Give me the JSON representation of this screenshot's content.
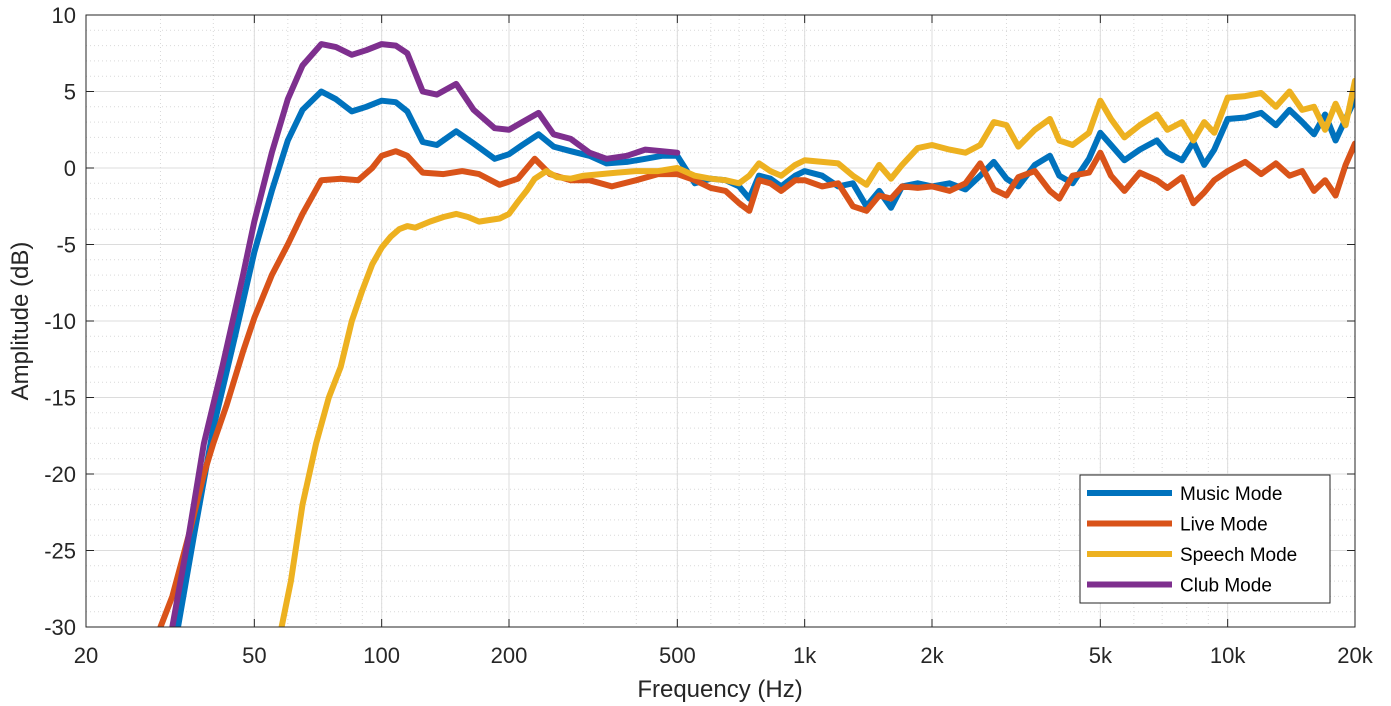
{
  "chart_data": {
    "type": "line",
    "title": "",
    "xlabel": "Frequency (Hz)",
    "ylabel": "Amplitude (dB)",
    "xscale": "log",
    "xlim": [
      20,
      20000
    ],
    "ylim": [
      -30,
      10
    ],
    "grid": true,
    "minor_grid": true,
    "legend_position": "bottom-right",
    "x_ticks": [
      {
        "value": 20,
        "label": "20"
      },
      {
        "value": 50,
        "label": "50"
      },
      {
        "value": 100,
        "label": "100"
      },
      {
        "value": 200,
        "label": "200"
      },
      {
        "value": 500,
        "label": "500"
      },
      {
        "value": 1000,
        "label": "1k"
      },
      {
        "value": 2000,
        "label": "2k"
      },
      {
        "value": 5000,
        "label": "5k"
      },
      {
        "value": 10000,
        "label": "10k"
      },
      {
        "value": 20000,
        "label": "20k"
      }
    ],
    "y_ticks": [
      {
        "value": 10,
        "label": "10"
      },
      {
        "value": 5,
        "label": "5"
      },
      {
        "value": 0,
        "label": "0"
      },
      {
        "value": -5,
        "label": "-5"
      },
      {
        "value": -10,
        "label": "-10"
      },
      {
        "value": -15,
        "label": "-15"
      },
      {
        "value": -20,
        "label": "-20"
      },
      {
        "value": -25,
        "label": "-25"
      },
      {
        "value": -30,
        "label": "-30"
      }
    ],
    "series": [
      {
        "name": "Music Mode",
        "color": "#0072BD",
        "x": [
          33,
          36,
          40,
          45,
          50,
          55,
          60,
          65,
          72,
          78,
          85,
          92,
          100,
          108,
          115,
          125,
          135,
          150,
          165,
          185,
          200,
          215,
          235,
          255,
          280,
          310,
          340,
          380,
          420,
          460,
          500,
          550,
          600,
          650,
          700,
          740,
          780,
          830,
          880,
          950,
          1000,
          1100,
          1200,
          1300,
          1400,
          1500,
          1600,
          1700,
          1850,
          2000,
          2200,
          2400,
          2600,
          2800,
          3000,
          3200,
          3500,
          3800,
          4000,
          4300,
          4700,
          5000,
          5300,
          5700,
          6200,
          6800,
          7200,
          7800,
          8300,
          8800,
          9300,
          10000,
          11000,
          12000,
          13000,
          14000,
          15000,
          16000,
          17000,
          18000,
          19000,
          20000
        ],
        "y": [
          -30,
          -24,
          -17,
          -11,
          -5.5,
          -1.5,
          1.8,
          3.8,
          5.0,
          4.5,
          3.7,
          4.0,
          4.4,
          4.3,
          3.7,
          1.7,
          1.5,
          2.4,
          1.6,
          0.6,
          0.9,
          1.5,
          2.2,
          1.4,
          1.1,
          0.8,
          0.3,
          0.4,
          0.6,
          0.8,
          0.8,
          -1.0,
          -0.7,
          -0.8,
          -1.2,
          -2.0,
          -0.5,
          -0.7,
          -1.2,
          -0.5,
          -0.2,
          -0.5,
          -1.2,
          -1.0,
          -2.5,
          -1.5,
          -2.6,
          -1.2,
          -1.0,
          -1.2,
          -1.0,
          -1.4,
          -0.5,
          0.4,
          -0.7,
          -1.2,
          0.2,
          0.8,
          -0.5,
          -1.0,
          0.6,
          2.3,
          1.5,
          0.5,
          1.2,
          1.8,
          1.0,
          0.5,
          1.7,
          0.2,
          1.2,
          3.2,
          3.3,
          3.6,
          2.8,
          3.8,
          3.0,
          2.2,
          3.5,
          1.8,
          3.2,
          4.5
        ]
      },
      {
        "name": "Live Mode",
        "color": "#D95319",
        "x": [
          30,
          32,
          35,
          38,
          40,
          43,
          47,
          50,
          55,
          60,
          65,
          72,
          80,
          88,
          95,
          100,
          108,
          115,
          125,
          140,
          155,
          170,
          190,
          210,
          230,
          250,
          280,
          310,
          350,
          400,
          450,
          500,
          550,
          600,
          650,
          700,
          740,
          780,
          830,
          880,
          950,
          1000,
          1100,
          1200,
          1300,
          1400,
          1500,
          1600,
          1700,
          1850,
          2000,
          2200,
          2400,
          2600,
          2800,
          3000,
          3200,
          3500,
          3800,
          4000,
          4300,
          4700,
          5000,
          5300,
          5700,
          6200,
          6800,
          7200,
          7800,
          8300,
          8800,
          9300,
          10000,
          11000,
          12000,
          13000,
          14000,
          15000,
          16000,
          17000,
          18000,
          19000,
          20000
        ],
        "y": [
          -30,
          -28,
          -24,
          -20,
          -18,
          -15.5,
          -12,
          -9.8,
          -7,
          -5,
          -3,
          -0.8,
          -0.7,
          -0.8,
          0.0,
          0.8,
          1.1,
          0.8,
          -0.3,
          -0.4,
          -0.2,
          -0.4,
          -1.1,
          -0.7,
          0.6,
          -0.4,
          -0.8,
          -0.8,
          -1.2,
          -0.8,
          -0.4,
          -0.4,
          -0.8,
          -1.3,
          -1.5,
          -2.3,
          -2.8,
          -0.8,
          -1.0,
          -1.5,
          -0.8,
          -0.8,
          -1.2,
          -1.0,
          -2.5,
          -2.8,
          -1.8,
          -2.0,
          -1.2,
          -1.3,
          -1.2,
          -1.5,
          -1.0,
          0.3,
          -1.4,
          -1.8,
          -0.6,
          -0.2,
          -1.5,
          -2.0,
          -0.5,
          -0.3,
          1.0,
          -0.5,
          -1.5,
          -0.3,
          -0.8,
          -1.3,
          -0.6,
          -2.3,
          -1.6,
          -0.8,
          -0.2,
          0.4,
          -0.4,
          0.3,
          -0.5,
          -0.2,
          -1.5,
          -0.8,
          -1.8,
          0.2,
          1.6
        ]
      },
      {
        "name": "Speech Mode",
        "color": "#EDB120",
        "x": [
          58,
          61,
          65,
          70,
          75,
          80,
          85,
          90,
          95,
          100,
          105,
          110,
          115,
          120,
          130,
          140,
          150,
          160,
          170,
          180,
          190,
          200,
          210,
          220,
          230,
          245,
          260,
          280,
          300,
          330,
          360,
          400,
          450,
          500,
          550,
          600,
          650,
          700,
          740,
          780,
          830,
          880,
          950,
          1000,
          1100,
          1200,
          1300,
          1400,
          1500,
          1600,
          1700,
          1850,
          2000,
          2200,
          2400,
          2600,
          2800,
          3000,
          3200,
          3500,
          3800,
          4000,
          4300,
          4700,
          5000,
          5300,
          5700,
          6200,
          6800,
          7200,
          7800,
          8300,
          8800,
          9300,
          10000,
          11000,
          12000,
          13000,
          14000,
          15000,
          16000,
          17000,
          18000,
          19000,
          20000
        ],
        "y": [
          -30,
          -27,
          -22,
          -18,
          -15,
          -13,
          -10,
          -8,
          -6.3,
          -5.2,
          -4.5,
          -4.0,
          -3.8,
          -3.9,
          -3.5,
          -3.2,
          -3.0,
          -3.2,
          -3.5,
          -3.4,
          -3.3,
          -3.0,
          -2.2,
          -1.5,
          -0.7,
          -0.2,
          -0.6,
          -0.7,
          -0.5,
          -0.4,
          -0.3,
          -0.2,
          -0.2,
          0.0,
          -0.5,
          -0.7,
          -0.8,
          -1.0,
          -0.5,
          0.3,
          -0.2,
          -0.5,
          0.2,
          0.5,
          0.4,
          0.3,
          -0.5,
          -1.1,
          0.2,
          -0.7,
          0.2,
          1.3,
          1.5,
          1.2,
          1.0,
          1.5,
          3.0,
          2.8,
          1.4,
          2.5,
          3.2,
          1.8,
          1.5,
          2.3,
          4.4,
          3.2,
          2.0,
          2.8,
          3.5,
          2.5,
          3.0,
          1.8,
          3.0,
          2.3,
          4.6,
          4.7,
          4.9,
          4.0,
          5.0,
          3.8,
          4.0,
          2.5,
          4.2,
          2.8,
          5.7
        ]
      },
      {
        "name": "Club Mode",
        "color": "#7E2F8E",
        "x": [
          32,
          35,
          38,
          42,
          47,
          50,
          55,
          60,
          65,
          72,
          78,
          85,
          92,
          100,
          108,
          115,
          125,
          135,
          150,
          165,
          185,
          200,
          215,
          235,
          255,
          280,
          310,
          340,
          380,
          420,
          460,
          500
        ],
        "y": [
          -30,
          -24,
          -18,
          -13,
          -7,
          -3.5,
          1.0,
          4.5,
          6.7,
          8.1,
          7.9,
          7.4,
          7.7,
          8.1,
          8.0,
          7.5,
          5.0,
          4.8,
          5.5,
          3.8,
          2.6,
          2.5,
          3.0,
          3.6,
          2.2,
          1.9,
          1.0,
          0.6,
          0.8,
          1.2,
          1.1,
          1.0
        ]
      }
    ]
  }
}
